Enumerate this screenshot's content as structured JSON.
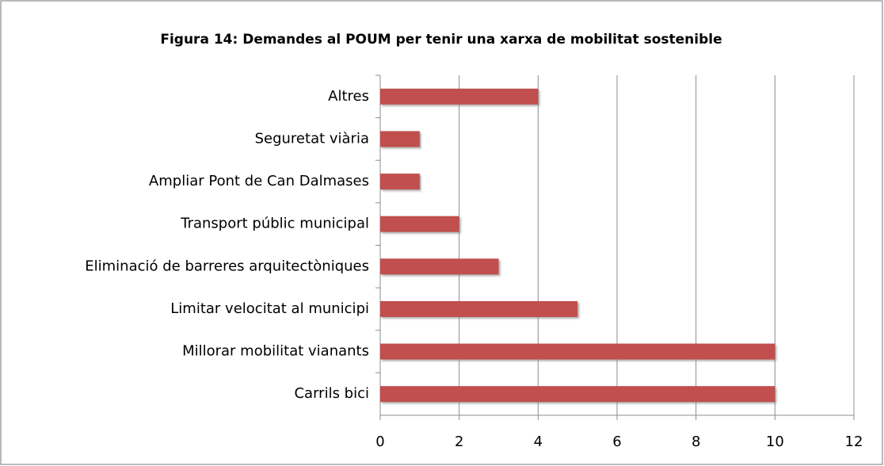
{
  "chart_data": {
    "type": "bar",
    "orientation": "horizontal",
    "title": "Figura 14: Demandes al POUM per tenir una xarxa de mobilitat sostenible",
    "categories": [
      "Altres",
      "Seguretat viària",
      "Ampliar Pont de Can Dalmases",
      "Transport públic municipal",
      "Eliminació de barreres arquitectòniques",
      "Limitar velocitat al municipi",
      "Millorar mobilitat vianants",
      "Carrils bici"
    ],
    "values": [
      4,
      1,
      1,
      2,
      3,
      5,
      10,
      10
    ],
    "color": "#c0504d",
    "xlim": [
      0,
      12
    ],
    "xticks": [
      0,
      2,
      4,
      6,
      8,
      10,
      12
    ],
    "grid": true
  }
}
